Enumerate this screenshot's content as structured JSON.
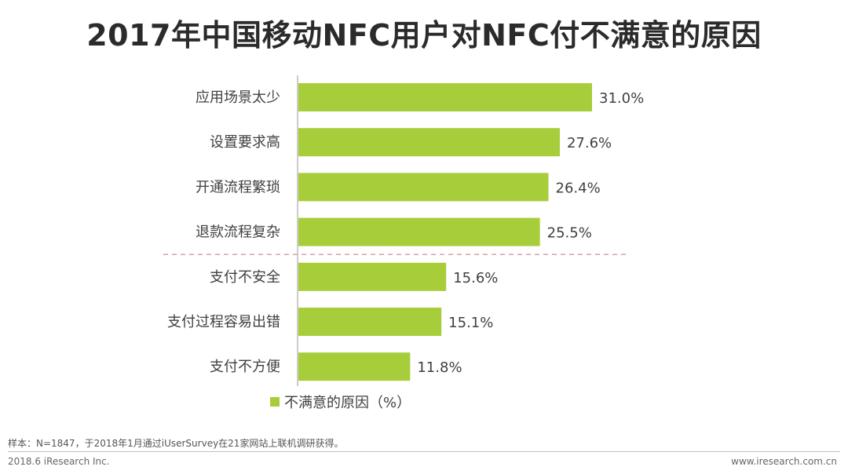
{
  "title": "2017年中国移动NFC用户对NFC付不满意的原因",
  "chart_data": {
    "type": "bar",
    "orientation": "horizontal",
    "categories": [
      "应用场景太少",
      "设置要求高",
      "开通流程繁琐",
      "退款流程复杂",
      "支付不安全",
      "支付过程容易出错",
      "支付不方便"
    ],
    "series": [
      {
        "name": "不满意的原因（%）",
        "values": [
          31.0,
          27.6,
          26.4,
          25.5,
          15.6,
          15.1,
          11.8
        ],
        "labels": [
          "31.0%",
          "27.6%",
          "26.4%",
          "25.5%",
          "15.6%",
          "15.1%",
          "11.8%"
        ]
      }
    ],
    "xlim": [
      0,
      31.0
    ],
    "separator_after_index": 3,
    "legend_position": "bottom-left",
    "grid": false
  },
  "colors": {
    "bar": "#a8cd3a",
    "separator": "#d9a0a8",
    "axis": "#999999"
  },
  "legend": {
    "label": "不满意的原因（%）"
  },
  "note": "样本：N=1847，于2018年1月通过iUserSurvey在21家网站上联机调研获得。",
  "footer": {
    "left": "2018.6 iResearch Inc.",
    "right": "www.iresearch.com.cn"
  }
}
